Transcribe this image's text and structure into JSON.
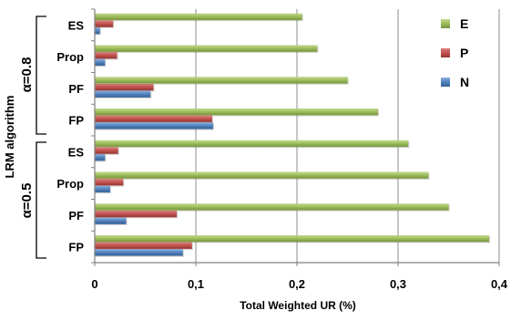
{
  "chart_data": {
    "type": "bar",
    "orientation": "horizontal",
    "title": "",
    "xlabel": "Total Weighted UR (%)",
    "ylabel": "LRM algorithm",
    "xlim": [
      0,
      0.4
    ],
    "xticks": [
      "0",
      "0,1",
      "0,2",
      "0,3",
      "0,4"
    ],
    "grid": "vertical",
    "legend_position": "right",
    "groups": [
      {
        "label": "α=0.8",
        "categories": [
          "ES",
          "Prop",
          "PF",
          "FP"
        ],
        "series": [
          {
            "name": "E",
            "values": [
              0.205,
              0.22,
              0.25,
              0.28
            ]
          },
          {
            "name": "P",
            "values": [
              0.018,
              0.022,
              0.058,
              0.116
            ]
          },
          {
            "name": "N",
            "values": [
              0.005,
              0.01,
              0.055,
              0.117
            ]
          }
        ]
      },
      {
        "label": "α=0.5",
        "categories": [
          "ES",
          "Prop",
          "PF",
          "FP"
        ],
        "series": [
          {
            "name": "E",
            "values": [
              0.31,
              0.33,
              0.35,
              0.39
            ]
          },
          {
            "name": "P",
            "values": [
              0.023,
              0.028,
              0.081,
              0.096
            ]
          },
          {
            "name": "N",
            "values": [
              0.01,
              0.015,
              0.031,
              0.087
            ]
          }
        ]
      }
    ],
    "legend": [
      {
        "name": "E",
        "color": "#9BBB59"
      },
      {
        "name": "P",
        "color": "#C0504D"
      },
      {
        "name": "N",
        "color": "#4F81BD"
      }
    ]
  }
}
